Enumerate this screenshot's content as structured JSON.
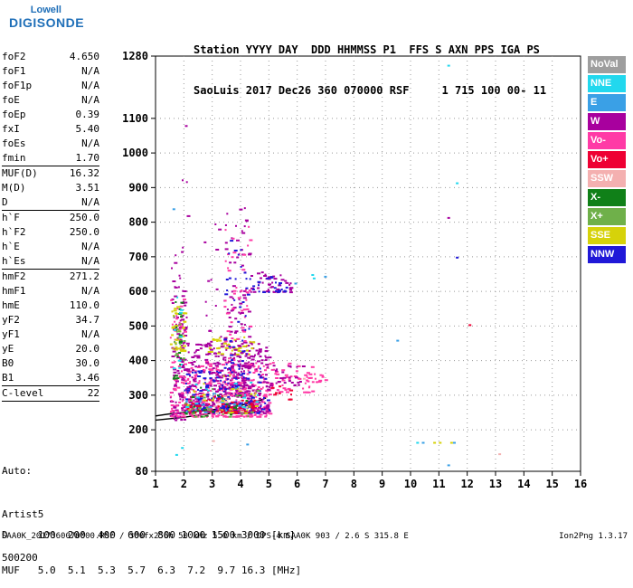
{
  "logo": {
    "line1": "Lowell",
    "line2": "DIGISONDE"
  },
  "header": {
    "line1": "Station YYYY DAY  DDD HHMMSS P1  FFS S AXN PPS IGA PS",
    "line2": "SaoLuis 2017 Dec26 360 070000 RSF     1 715 100 00- 11"
  },
  "params": [
    {
      "k": "foF2",
      "v": "4.650"
    },
    {
      "k": "foF1",
      "v": "N/A"
    },
    {
      "k": "foF1p",
      "v": "N/A"
    },
    {
      "k": "foE",
      "v": "N/A"
    },
    {
      "k": "foEp",
      "v": "0.39"
    },
    {
      "k": "fxI",
      "v": "5.40"
    },
    {
      "k": "foEs",
      "v": "N/A"
    },
    {
      "k": "fmin",
      "v": "1.70"
    },
    {
      "k": "MUF(D)",
      "v": "16.32"
    },
    {
      "k": "M(D)",
      "v": "3.51"
    },
    {
      "k": "D",
      "v": "N/A"
    },
    {
      "k": "h`F",
      "v": "250.0"
    },
    {
      "k": "h`F2",
      "v": "250.0"
    },
    {
      "k": "h`E",
      "v": "N/A"
    },
    {
      "k": "h`Es",
      "v": "N/A"
    },
    {
      "k": "hmF2",
      "v": "271.2"
    },
    {
      "k": "hmF1",
      "v": "N/A"
    },
    {
      "k": "hmE",
      "v": "110.0"
    },
    {
      "k": "yF2",
      "v": "34.7"
    },
    {
      "k": "yF1",
      "v": "N/A"
    },
    {
      "k": "yE",
      "v": "20.0"
    },
    {
      "k": "B0",
      "v": "30.0"
    },
    {
      "k": "B1",
      "v": "3.46"
    },
    {
      "k": "C-level",
      "v": "22"
    }
  ],
  "auto": {
    "l1": "Auto:",
    "l2": "Artist5",
    "l3": "500200"
  },
  "table": {
    "row1": "D     100  200  400  600  800 1000 1500 3000 [km]",
    "row2": "MUF   5.0  5.1  5.3  5.7  6.3  7.2  9.7 16.3 [MHz]"
  },
  "footer": "SAA0K_2017360070000.RSF / 300fx256h 50 kHz 5.0 km / DPS-4 SAA0K 903 / 2.6 S 315.8 E",
  "version": "Ion2Png 1.3.17",
  "legend": [
    {
      "label": "NoVal",
      "color": "#9e9e9e"
    },
    {
      "label": "NNE",
      "color": "#22d8ee"
    },
    {
      "label": "E",
      "color": "#3aa0e6"
    },
    {
      "label": "W",
      "color": "#a8009e"
    },
    {
      "label": "Vo-",
      "color": "#ff3aa6"
    },
    {
      "label": "Vo+",
      "color": "#ee0033"
    },
    {
      "label": "SSW",
      "color": "#f4b0b0"
    },
    {
      "label": "X-",
      "color": "#108018"
    },
    {
      "label": "X+",
      "color": "#6fb04a"
    },
    {
      "label": "SSE",
      "color": "#d6d20a"
    },
    {
      "label": "NNW",
      "color": "#2018d8"
    }
  ],
  "chart_data": {
    "type": "scatter",
    "title": "",
    "xlabel": "",
    "ylabel": "",
    "xlim": [
      1,
      16
    ],
    "ylim": [
      80,
      1280
    ],
    "x_ticks": [
      1,
      2,
      3,
      4,
      5,
      6,
      7,
      8,
      9,
      10,
      11,
      12,
      13,
      14,
      15,
      16
    ],
    "y_ticks": [
      80,
      200,
      300,
      400,
      500,
      600,
      700,
      800,
      900,
      1000,
      1100,
      1280
    ],
    "grid": "dotted",
    "trace_hmF2": [
      [
        1.0,
        240
      ],
      [
        1.5,
        246
      ],
      [
        2.0,
        250
      ],
      [
        3.0,
        258
      ],
      [
        4.0,
        270
      ],
      [
        4.65,
        285
      ]
    ],
    "trace_lower": [
      [
        1.0,
        228
      ],
      [
        2.0,
        236
      ],
      [
        3.0,
        248
      ],
      [
        4.0,
        262
      ],
      [
        4.9,
        292
      ]
    ],
    "points": [
      {
        "x": 1.6,
        "y": 840,
        "s": "E"
      },
      {
        "x": 11.3,
        "y": 1255,
        "s": "NNE"
      },
      {
        "x": 11.6,
        "y": 915,
        "s": "NNE"
      },
      {
        "x": 11.3,
        "y": 815,
        "s": "W"
      },
      {
        "x": 11.6,
        "y": 700,
        "s": "NNW"
      },
      {
        "x": 12.05,
        "y": 505,
        "s": "Vo+"
      },
      {
        "x": 9.5,
        "y": 460,
        "s": "E"
      },
      {
        "x": 6.5,
        "y": 650,
        "s": "NNE"
      },
      {
        "x": 6.55,
        "y": 640,
        "s": "NNE"
      },
      {
        "x": 6.95,
        "y": 645,
        "s": "E"
      },
      {
        "x": 5.9,
        "y": 625,
        "s": "E"
      },
      {
        "x": 10.2,
        "y": 165,
        "s": "NNE"
      },
      {
        "x": 10.4,
        "y": 165,
        "s": "E"
      },
      {
        "x": 10.8,
        "y": 165,
        "s": "SSE"
      },
      {
        "x": 11.0,
        "y": 165,
        "s": "SSE"
      },
      {
        "x": 11.4,
        "y": 165,
        "s": "SSE"
      },
      {
        "x": 11.5,
        "y": 165,
        "s": "E"
      },
      {
        "x": 11.3,
        "y": 100,
        "s": "E"
      },
      {
        "x": 13.1,
        "y": 132,
        "s": "SSW"
      },
      {
        "x": 1.7,
        "y": 130,
        "s": "NNE"
      },
      {
        "x": 1.9,
        "y": 150,
        "s": "NNE"
      },
      {
        "x": 4.2,
        "y": 160,
        "s": "E"
      },
      {
        "x": 3.0,
        "y": 170,
        "s": "SSW"
      },
      {
        "x": 1.8,
        "y": 425,
        "s": "X-"
      },
      {
        "x": 6.2,
        "y": 350,
        "s": "SSW"
      }
    ],
    "clusters": [
      {
        "x": [
          1.5,
          2.0
        ],
        "y": [
          230,
          720
        ],
        "s": "W",
        "n": 110
      },
      {
        "x": [
          1.5,
          2.0
        ],
        "y": [
          240,
          600
        ],
        "s": "Vo-",
        "n": 70
      },
      {
        "x": [
          1.5,
          2.0
        ],
        "y": [
          430,
          560
        ],
        "s": "SSE",
        "n": 40
      },
      {
        "x": [
          1.6,
          1.9
        ],
        "y": [
          350,
          640
        ],
        "s": "X-",
        "n": 18
      },
      {
        "x": [
          1.6,
          2.0
        ],
        "y": [
          400,
          560
        ],
        "s": "X+",
        "n": 15
      },
      {
        "x": [
          1.6,
          2.0
        ],
        "y": [
          380,
          650
        ],
        "s": "NNE",
        "n": 10
      },
      {
        "x": [
          2.0,
          5.0
        ],
        "y": [
          240,
          400
        ],
        "s": "Vo-",
        "n": 340
      },
      {
        "x": [
          2.0,
          5.0
        ],
        "y": [
          250,
          460
        ],
        "s": "W",
        "n": 340
      },
      {
        "x": [
          2.0,
          5.0
        ],
        "y": [
          250,
          380
        ],
        "s": "NNW",
        "n": 150
      },
      {
        "x": [
          2.0,
          4.5
        ],
        "y": [
          250,
          300
        ],
        "s": "Vo+",
        "n": 80
      },
      {
        "x": [
          2.8,
          4.4
        ],
        "y": [
          420,
          470
        ],
        "s": "SSE",
        "n": 45
      },
      {
        "x": [
          3.4,
          4.3
        ],
        "y": [
          300,
          850
        ],
        "s": "W",
        "n": 130
      },
      {
        "x": [
          3.4,
          4.3
        ],
        "y": [
          300,
          800
        ],
        "s": "Vo-",
        "n": 80
      },
      {
        "x": [
          3.4,
          4.3
        ],
        "y": [
          320,
          760
        ],
        "s": "NNW",
        "n": 50
      },
      {
        "x": [
          4.3,
          5.8
        ],
        "y": [
          600,
          660
        ],
        "s": "W",
        "n": 45
      },
      {
        "x": [
          4.3,
          5.6
        ],
        "y": [
          600,
          650
        ],
        "s": "NNW",
        "n": 25
      },
      {
        "x": [
          5.0,
          6.5
        ],
        "y": [
          310,
          400
        ],
        "s": "Vo-",
        "n": 50
      },
      {
        "x": [
          5.0,
          6.2
        ],
        "y": [
          330,
          390
        ],
        "s": "W",
        "n": 25
      },
      {
        "x": [
          5.0,
          5.8
        ],
        "y": [
          290,
          330
        ],
        "s": "Vo+",
        "n": 10
      },
      {
        "x": [
          6.2,
          7.0
        ],
        "y": [
          340,
          370
        ],
        "s": "Vo-",
        "n": 15
      },
      {
        "x": [
          2.0,
          4.6
        ],
        "y": [
          240,
          330
        ],
        "s": "X-",
        "n": 25
      },
      {
        "x": [
          2.0,
          4.6
        ],
        "y": [
          240,
          330
        ],
        "s": "X+",
        "n": 25
      },
      {
        "x": [
          2.0,
          4.6
        ],
        "y": [
          250,
          350
        ],
        "s": "NNE",
        "n": 20
      },
      {
        "x": [
          2.0,
          4.6
        ],
        "y": [
          250,
          380
        ],
        "s": "SSE",
        "n": 25
      },
      {
        "x": [
          2.5,
          4.0
        ],
        "y": [
          250,
          330
        ],
        "s": "E",
        "n": 12
      },
      {
        "x": [
          3.0,
          4.5
        ],
        "y": [
          250,
          340
        ],
        "s": "SSW",
        "n": 15
      },
      {
        "x": [
          1.9,
          2.1
        ],
        "y": [
          300,
          1100
        ],
        "s": "W",
        "n": 14
      },
      {
        "x": [
          2.7,
          3.3
        ],
        "y": [
          300,
          800
        ],
        "s": "W",
        "n": 30
      }
    ]
  }
}
